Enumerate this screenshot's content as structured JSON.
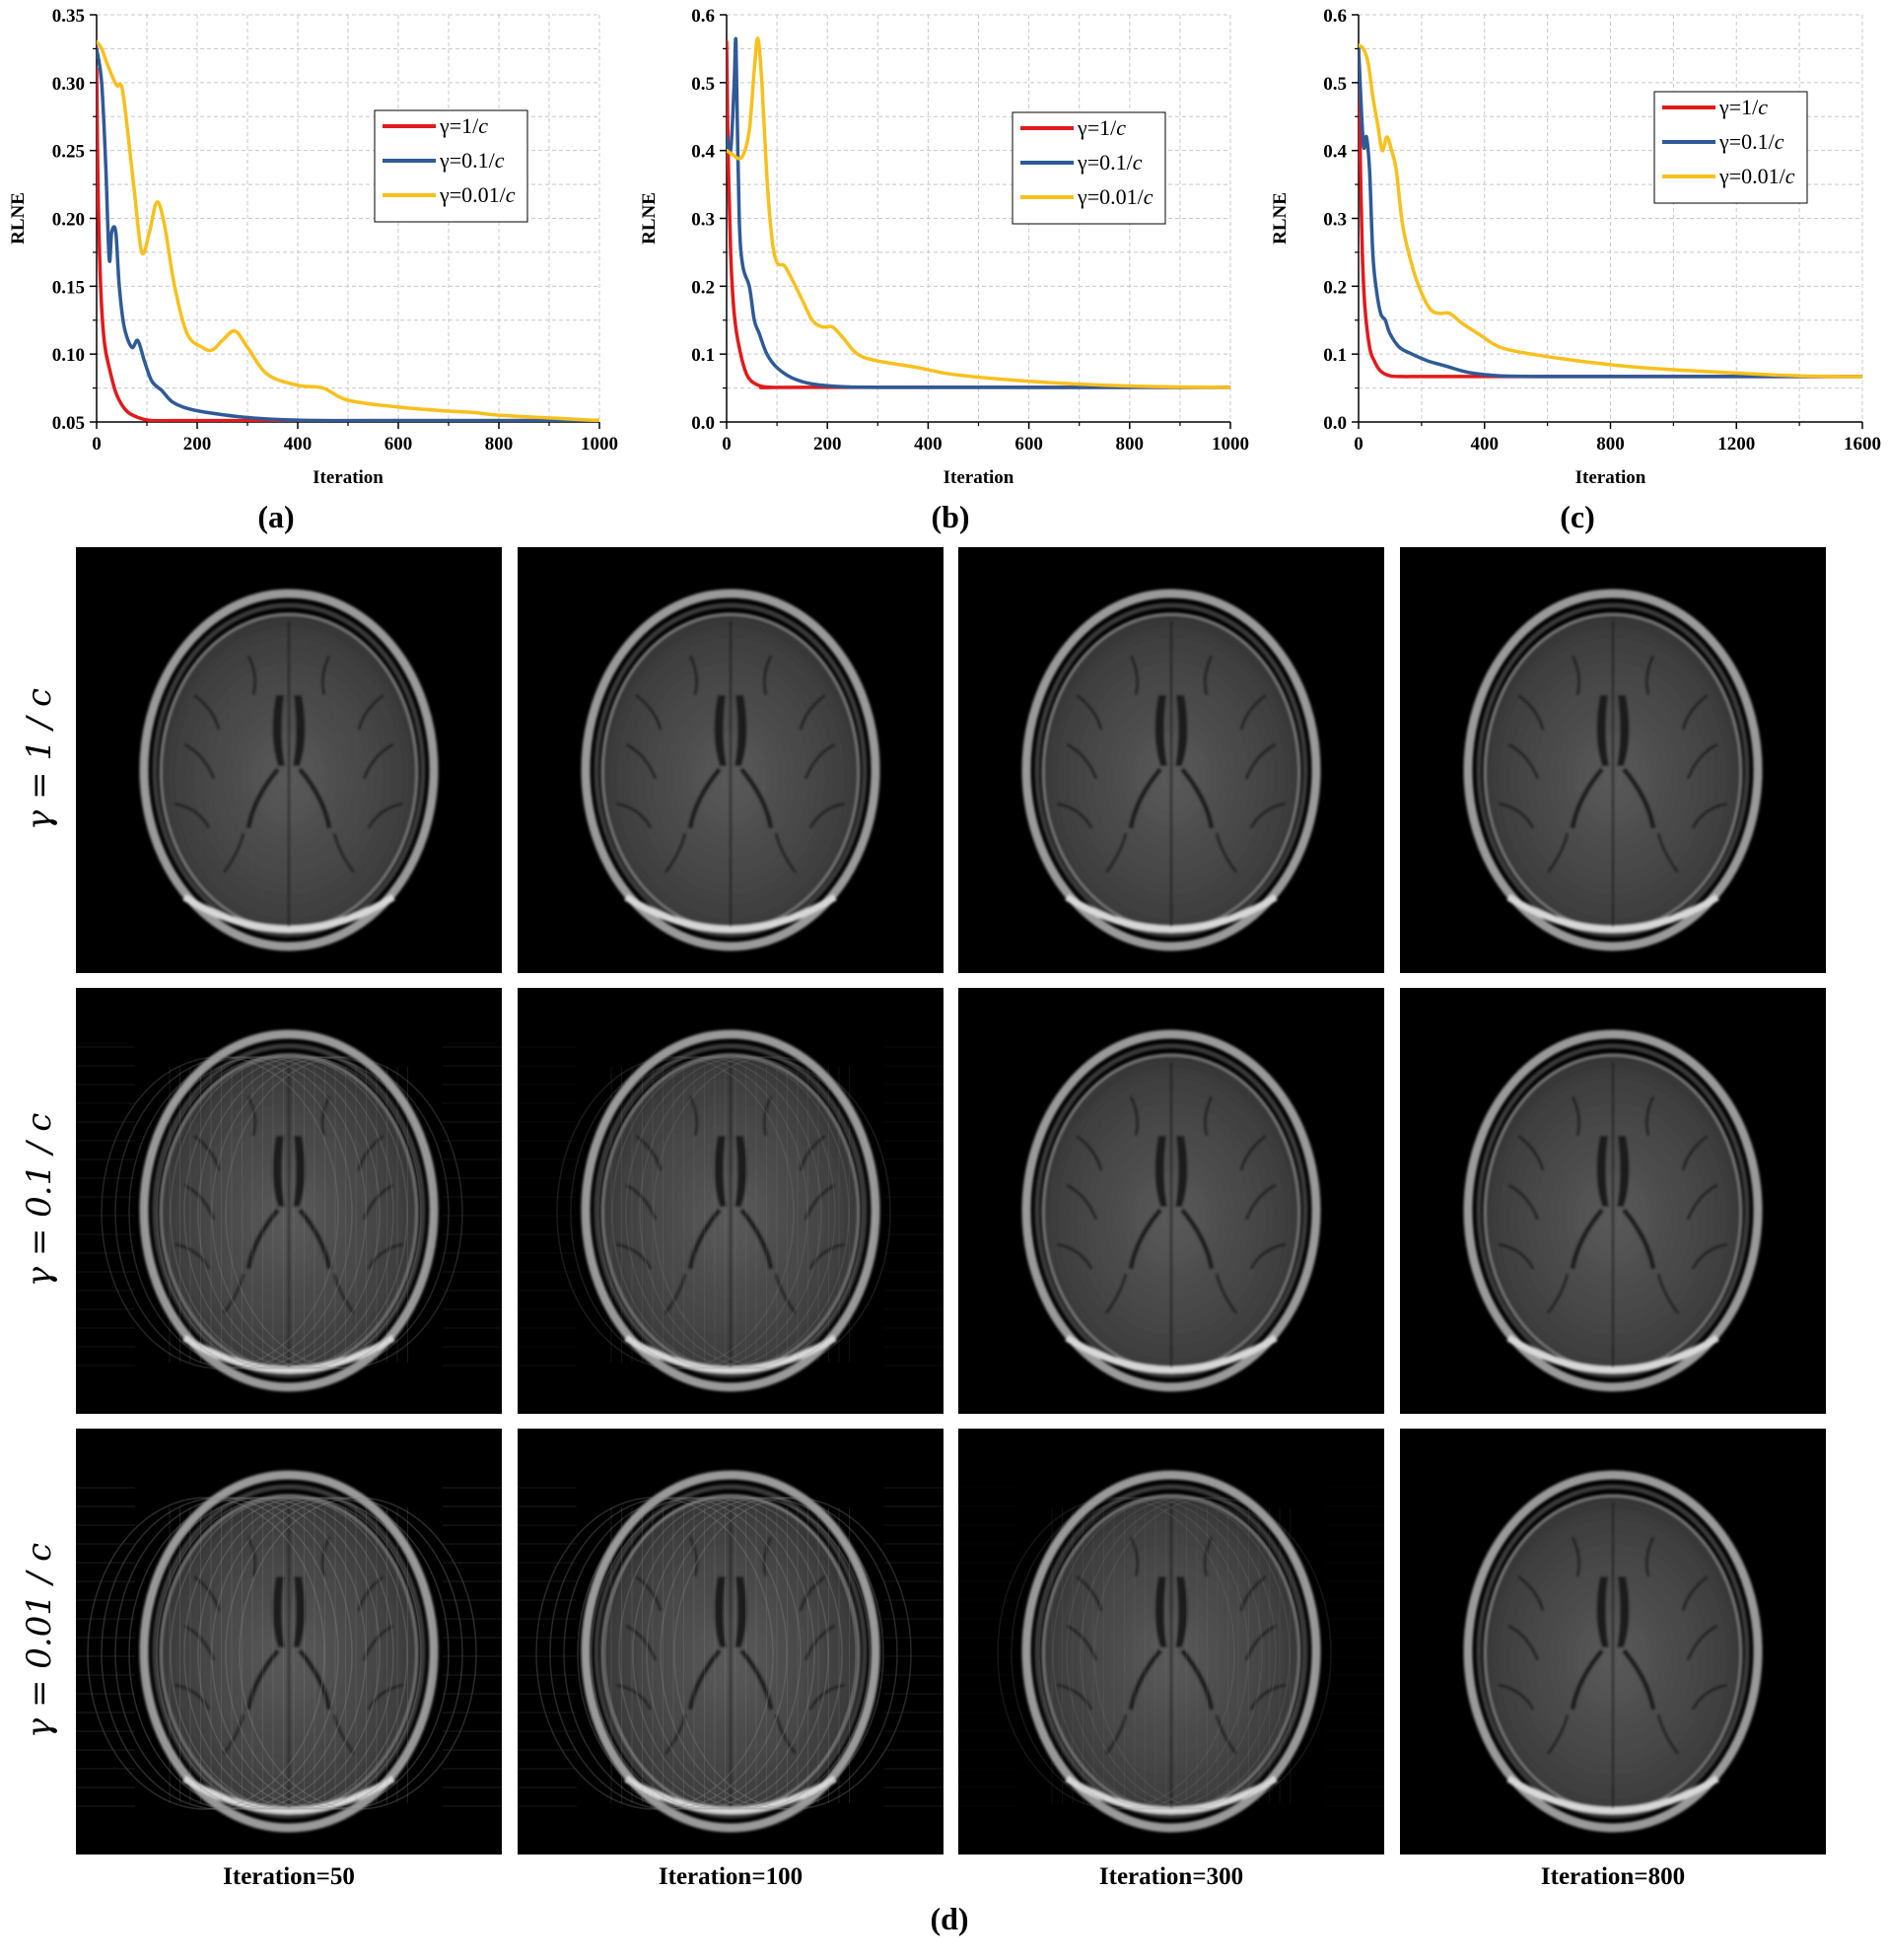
{
  "chart_data": [
    {
      "type": "line",
      "panel_label": "(a)",
      "xlabel": "Iteration",
      "ylabel": "RLNE",
      "xlim": [
        0,
        1000
      ],
      "ylim": [
        0.05,
        0.35
      ],
      "xticks": [
        0,
        200,
        400,
        600,
        800,
        1000
      ],
      "yticks": [
        0.05,
        0.1,
        0.15,
        0.2,
        0.25,
        0.3,
        0.35
      ],
      "tick_decimals": 2,
      "grid": true,
      "legend_position": "upper-right",
      "series": [
        {
          "name": "γ=1/",
          "name_italic": "c",
          "color": "#e3191b",
          "x": [
            0,
            3,
            8,
            15,
            25,
            40,
            60,
            85,
            110,
            150,
            200,
            300,
            500,
            1000
          ],
          "y": [
            0.31,
            0.22,
            0.15,
            0.11,
            0.09,
            0.07,
            0.058,
            0.053,
            0.051,
            0.051,
            0.051,
            0.051,
            0.051,
            0.051
          ]
        },
        {
          "name": "γ=0.1/",
          "name_italic": "c",
          "color": "#2e5a97",
          "x": [
            0,
            10,
            18,
            25,
            30,
            38,
            45,
            55,
            70,
            82,
            95,
            110,
            130,
            150,
            180,
            220,
            280,
            350,
            450,
            600,
            800,
            1000
          ],
          "y": [
            0.325,
            0.3,
            0.24,
            0.17,
            0.19,
            0.19,
            0.15,
            0.12,
            0.105,
            0.11,
            0.095,
            0.08,
            0.073,
            0.065,
            0.06,
            0.057,
            0.054,
            0.052,
            0.051,
            0.051,
            0.051,
            0.051
          ]
        },
        {
          "name": "γ=0.01/",
          "name_italic": "c",
          "color": "#f8c01c",
          "x": [
            0,
            10,
            25,
            40,
            50,
            60,
            75,
            90,
            105,
            120,
            135,
            155,
            180,
            210,
            230,
            250,
            275,
            300,
            340,
            400,
            450,
            500,
            600,
            700,
            750,
            800,
            900,
            1000
          ],
          "y": [
            0.33,
            0.325,
            0.31,
            0.298,
            0.297,
            0.27,
            0.22,
            0.175,
            0.19,
            0.212,
            0.195,
            0.15,
            0.115,
            0.105,
            0.103,
            0.11,
            0.117,
            0.105,
            0.085,
            0.077,
            0.075,
            0.066,
            0.061,
            0.058,
            0.057,
            0.055,
            0.053,
            0.051
          ]
        }
      ]
    },
    {
      "type": "line",
      "panel_label": "(b)",
      "xlabel": "Iteration",
      "ylabel": "RLNE",
      "xlim": [
        0,
        1000
      ],
      "ylim": [
        0,
        0.6
      ],
      "xticks": [
        0,
        200,
        400,
        600,
        800,
        1000
      ],
      "yticks": [
        0.0,
        0.1,
        0.2,
        0.3,
        0.4,
        0.5,
        0.6
      ],
      "tick_decimals": 1,
      "grid": true,
      "legend_position": "upper-right",
      "series": [
        {
          "name": "γ=1/",
          "name_italic": "c",
          "color": "#e3191b",
          "x": [
            0,
            3,
            8,
            15,
            25,
            40,
            60,
            90,
            150,
            1000
          ],
          "y": [
            0.56,
            0.4,
            0.25,
            0.16,
            0.11,
            0.07,
            0.055,
            0.051,
            0.051,
            0.051
          ]
        },
        {
          "name": "γ=0.1/",
          "name_italic": "c",
          "color": "#2e5a97",
          "x": [
            0,
            8,
            15,
            18,
            20,
            25,
            32,
            45,
            55,
            65,
            80,
            100,
            130,
            170,
            230,
            350,
            1000
          ],
          "y": [
            0.42,
            0.4,
            0.5,
            0.565,
            0.5,
            0.3,
            0.23,
            0.2,
            0.15,
            0.13,
            0.1,
            0.08,
            0.065,
            0.056,
            0.052,
            0.051,
            0.051
          ]
        },
        {
          "name": "γ=0.01/",
          "name_italic": "c",
          "color": "#f8c01c",
          "x": [
            0,
            10,
            30,
            45,
            55,
            62,
            70,
            80,
            90,
            100,
            115,
            130,
            150,
            170,
            190,
            210,
            230,
            260,
            300,
            380,
            450,
            600,
            800,
            1000
          ],
          "y": [
            0.4,
            0.395,
            0.39,
            0.43,
            0.52,
            0.565,
            0.5,
            0.36,
            0.27,
            0.235,
            0.23,
            0.21,
            0.18,
            0.15,
            0.14,
            0.14,
            0.125,
            0.1,
            0.09,
            0.08,
            0.07,
            0.06,
            0.053,
            0.051
          ]
        }
      ]
    },
    {
      "type": "line",
      "panel_label": "(c)",
      "xlabel": "Iteration",
      "ylabel": "RLNE",
      "xlim": [
        0,
        1600
      ],
      "ylim": [
        0,
        0.6
      ],
      "xticks": [
        0,
        400,
        800,
        1200,
        1600
      ],
      "yticks": [
        0.0,
        0.1,
        0.2,
        0.3,
        0.4,
        0.5,
        0.6
      ],
      "tick_decimals": 1,
      "grid": true,
      "legend_position": "upper-right",
      "series": [
        {
          "name": "γ=1/",
          "name_italic": "c",
          "color": "#e3191b",
          "x": [
            0,
            5,
            12,
            20,
            35,
            50,
            70,
            100,
            140,
            200,
            400,
            1000,
            1600
          ],
          "y": [
            0.55,
            0.4,
            0.25,
            0.17,
            0.11,
            0.09,
            0.075,
            0.068,
            0.067,
            0.067,
            0.067,
            0.067,
            0.067
          ]
        },
        {
          "name": "γ=0.1/",
          "name_italic": "c",
          "color": "#2e5a97",
          "x": [
            0,
            15,
            25,
            35,
            45,
            55,
            70,
            85,
            100,
            130,
            170,
            220,
            280,
            350,
            450,
            600,
            1000,
            1400,
            1600
          ],
          "y": [
            0.55,
            0.41,
            0.42,
            0.37,
            0.25,
            0.2,
            0.16,
            0.15,
            0.13,
            0.11,
            0.1,
            0.09,
            0.082,
            0.073,
            0.068,
            0.067,
            0.067,
            0.067,
            0.067
          ]
        },
        {
          "name": "γ=0.01/",
          "name_italic": "c",
          "color": "#f8c01c",
          "x": [
            0,
            15,
            30,
            45,
            60,
            75,
            90,
            105,
            120,
            140,
            170,
            200,
            230,
            260,
            290,
            330,
            380,
            450,
            550,
            700,
            900,
            1200,
            1400,
            1600
          ],
          "y": [
            0.555,
            0.55,
            0.53,
            0.48,
            0.44,
            0.4,
            0.42,
            0.4,
            0.37,
            0.29,
            0.23,
            0.19,
            0.165,
            0.16,
            0.16,
            0.145,
            0.13,
            0.11,
            0.1,
            0.09,
            0.08,
            0.072,
            0.068,
            0.067
          ]
        }
      ]
    }
  ],
  "panel_d": {
    "label": "(d)",
    "row_labels": [
      "γ = 1 / c",
      "γ = 0.1 / c",
      "γ = 0.01 / c"
    ],
    "col_labels": [
      "Iteration=50",
      "Iteration=100",
      "Iteration=300",
      "Iteration=800"
    ],
    "artifact_levels": [
      [
        0.05,
        0.03,
        0.0,
        0.0
      ],
      [
        0.75,
        0.55,
        0.05,
        0.0
      ],
      [
        1.0,
        0.85,
        0.45,
        0.0
      ]
    ]
  }
}
